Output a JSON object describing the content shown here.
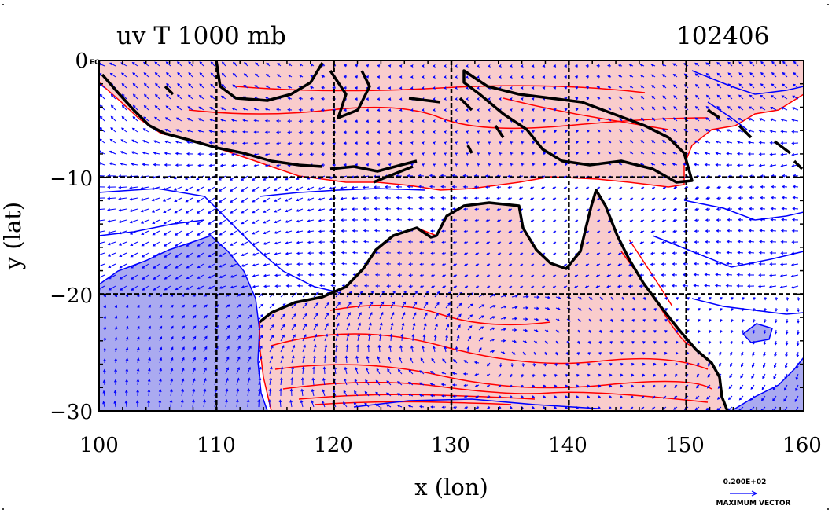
{
  "header": {
    "title": "uv T 1000 mb",
    "stamp": "102406"
  },
  "legend": {
    "reference_value": "0.200E+02",
    "reference_label": "MAXIMUM VECTOR"
  },
  "colors": {
    "land_fill": "#f9cccc",
    "warm_contour": "#ff0000",
    "cool_contour": "#0000ff",
    "cool_fill": "#aaaaf0",
    "vector": "#0000ff",
    "coastline": "#000000"
  },
  "chart_data": {
    "type": "map",
    "map_type": "vector-wind-and-temperature-contour",
    "xlabel": "x (lon)",
    "ylabel": "y (lat)",
    "xlim": [
      100,
      160
    ],
    "ylim": [
      -30,
      0
    ],
    "x_ticks": [
      "100",
      "110",
      "120",
      "130",
      "140",
      "150",
      "160"
    ],
    "y_ticks": [
      "0",
      "−10",
      "−20",
      "−30"
    ],
    "corner_label": "EQ",
    "grid": true,
    "reference_vector_ms": 20,
    "reference_vector": {
      "label": "0.200E+02",
      "caption": "MAXIMUM VECTOR"
    }
  }
}
